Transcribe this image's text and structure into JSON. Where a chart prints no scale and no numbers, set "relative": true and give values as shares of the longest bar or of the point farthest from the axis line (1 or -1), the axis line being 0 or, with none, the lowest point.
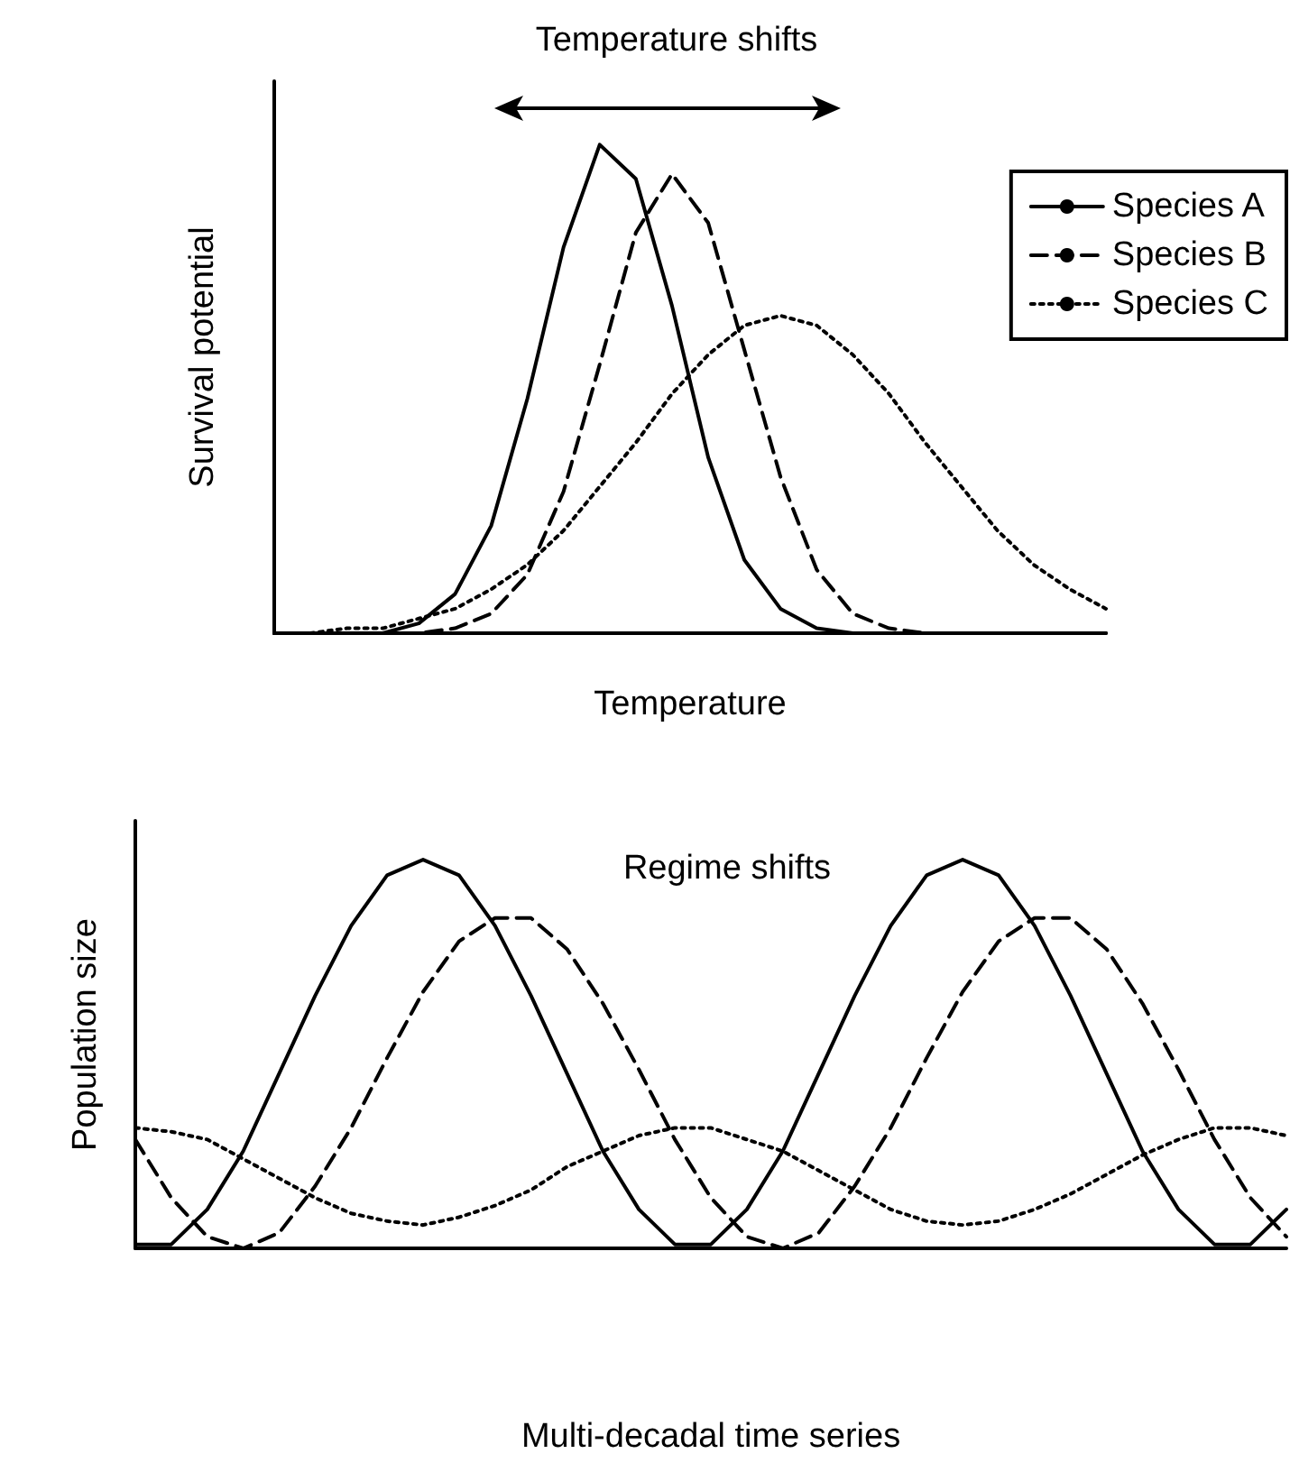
{
  "chart_data": [
    {
      "type": "line",
      "title": "Temperature shifts",
      "xlabel": "Temperature",
      "ylabel": "Survival potential",
      "relative": true,
      "legend": "top right",
      "categories": [
        null,
        null,
        null,
        null,
        null,
        null,
        null,
        null,
        null,
        null,
        null,
        null,
        null,
        null,
        null,
        null,
        null,
        null,
        null,
        null,
        null,
        null,
        null,
        null
      ],
      "series": [
        {
          "name": "Species A",
          "color": "#000000",
          "line_style": "solid",
          "values": [
            0,
            0,
            0,
            0,
            0.02,
            0.08,
            0.22,
            0.48,
            0.79,
            1,
            0.93,
            0.67,
            0.36,
            0.15,
            0.05,
            0.01,
            0,
            0,
            0,
            0,
            0,
            0,
            0,
            0
          ]
        },
        {
          "name": "Species B",
          "color": "#000000",
          "line_style": "dashed",
          "values": [
            0,
            0,
            0,
            0,
            0,
            0.01,
            0.04,
            0.12,
            0.29,
            0.55,
            0.82,
            0.94,
            0.84,
            0.58,
            0.32,
            0.13,
            0.04,
            0.01,
            0,
            0,
            0,
            0,
            0,
            0
          ]
        },
        {
          "name": "Species C",
          "color": "#000000",
          "line_style": "dotted",
          "values": [
            0,
            0,
            0.01,
            0.01,
            0.03,
            0.05,
            0.09,
            0.14,
            0.21,
            0.3,
            0.39,
            0.49,
            0.57,
            0.63,
            0.65,
            0.63,
            0.57,
            0.49,
            0.39,
            0.3,
            0.21,
            0.14,
            0.09,
            0.05
          ]
        }
      ]
    },
    {
      "type": "line",
      "title": "Regime shifts",
      "xlabel": "Multi-decadal time series",
      "ylabel": "Population size",
      "relative": true,
      "categories": [
        null,
        null,
        null,
        null,
        null,
        null,
        null,
        null,
        null,
        null,
        null,
        null,
        null,
        null,
        null,
        null,
        null,
        null,
        null,
        null,
        null,
        null,
        null,
        null,
        null,
        null,
        null,
        null,
        null,
        null,
        null,
        null,
        null
      ],
      "series": [
        {
          "color": "#000000",
          "line_style": "solid",
          "values": [
            0.01,
            0.01,
            0.1,
            0.25,
            0.45,
            0.65,
            0.83,
            0.96,
            1,
            0.96,
            0.83,
            0.65,
            0.45,
            0.25,
            0.1,
            0.01,
            0.01,
            0.1,
            0.25,
            0.45,
            0.65,
            0.83,
            0.96,
            1,
            0.96,
            0.83,
            0.65,
            0.45,
            0.25,
            0.1,
            0.01,
            0.01,
            0.1
          ]
        },
        {
          "color": "#000000",
          "line_style": "dashed",
          "values": [
            0.28,
            0.13,
            0.03,
            0,
            0.04,
            0.16,
            0.31,
            0.49,
            0.66,
            0.79,
            0.85,
            0.85,
            0.77,
            0.63,
            0.46,
            0.28,
            0.13,
            0.03,
            0,
            0.04,
            0.16,
            0.31,
            0.49,
            0.66,
            0.79,
            0.85,
            0.85,
            0.77,
            0.63,
            0.46,
            0.28,
            0.13,
            0.03
          ]
        },
        {
          "color": "#000000",
          "line_style": "dotted",
          "values": [
            0.31,
            0.3,
            0.28,
            0.23,
            0.18,
            0.13,
            0.09,
            0.07,
            0.06,
            0.08,
            0.11,
            0.15,
            0.21,
            0.25,
            0.29,
            0.31,
            0.31,
            0.28,
            0.25,
            0.2,
            0.15,
            0.1,
            0.07,
            0.06,
            0.07,
            0.1,
            0.14,
            0.19,
            0.24,
            0.28,
            0.31,
            0.31,
            0.29
          ]
        }
      ]
    }
  ]
}
